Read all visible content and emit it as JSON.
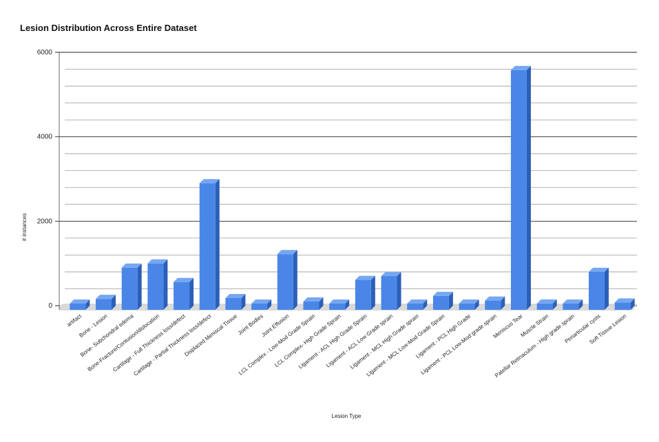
{
  "chart_data": {
    "type": "bar",
    "title": "Lesion Distribution Across Entire Dataset",
    "xlabel": "Lesion Type",
    "ylabel": "# instances",
    "ylim": [
      0,
      6000
    ],
    "yticks": [
      0,
      2000,
      4000,
      6000
    ],
    "grid": true,
    "legend": "none",
    "colors": {
      "bar_front": "#4a86e8",
      "bar_side": "#2c5fb8",
      "bar_top": "#76a7f0",
      "floor": "#d9d9d9"
    },
    "categories": [
      "artifact",
      "Bone - Lesion",
      "Bone- Subchondral edema",
      "Bone-Fracture/Contusion/dislocation",
      "Cartilage - Full Thickness loss/defect",
      "Cartilage - Partial Thickness loss/defect",
      "Displaced Meniscal Tissue",
      "Joint Bodies",
      "Joint Effusion",
      "LCL Complex - Low-Mod Grade Sprain",
      "LCL Complex- High Grade Sprain",
      "Ligament - ACL High Grade Sprain",
      "Ligament - ACL Low Grade sprain",
      "Ligament - MCL High Grade sprain",
      "Ligament - MCL Low-Mod Grade Sprain",
      "Ligament - PCL High Grade",
      "Ligament - PCL Low-Mod grade sprain",
      "Meniscus Tear",
      "Muscle Strain",
      "Patellar Retinaculum - High grade sprain",
      "Periarticular cysts",
      "Soft Tissue Lesion"
    ],
    "values": [
      5,
      160,
      900,
      1000,
      560,
      2900,
      180,
      25,
      1220,
      100,
      5,
      610,
      700,
      10,
      230,
      15,
      120,
      5580,
      50,
      25,
      800,
      75
    ]
  }
}
